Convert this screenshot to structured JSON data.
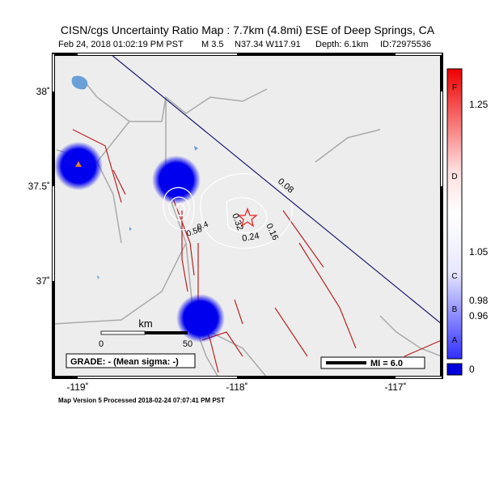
{
  "header": {
    "title": "CISN/cgs Uncertainty Ratio Map : 7.7km (4.8mi) ESE of Deep Springs, CA",
    "details": [
      "Feb 24, 2018 01:02:19 PM PST",
      "M 3.5",
      "N37.34 W117.91",
      "Depth: 6.1km",
      "ID:72975536"
    ]
  },
  "map": {
    "lat_labels": [
      "38˚",
      "37.5˚",
      "37˚"
    ],
    "lon_labels": [
      "-119˚",
      "-118˚",
      "-117˚"
    ],
    "contour_labels": [
      "0.08",
      "0.16",
      "0.24",
      "0.32",
      "0.56",
      "0.4"
    ],
    "scale": {
      "unit": "km",
      "ticks": [
        "0",
        "50"
      ]
    },
    "grade": "GRADE: - (Mean sigma: -)",
    "intensity": "MI = 6.0"
  },
  "colorbar": {
    "ticks": [
      "1.25",
      "1.05",
      "0.98",
      "0.96",
      "0"
    ],
    "grades": [
      "F",
      "D",
      "C",
      "B",
      "A"
    ]
  },
  "footer": "Map Version 5 Processed 2018-02-24 07:07:41 PM PST"
}
